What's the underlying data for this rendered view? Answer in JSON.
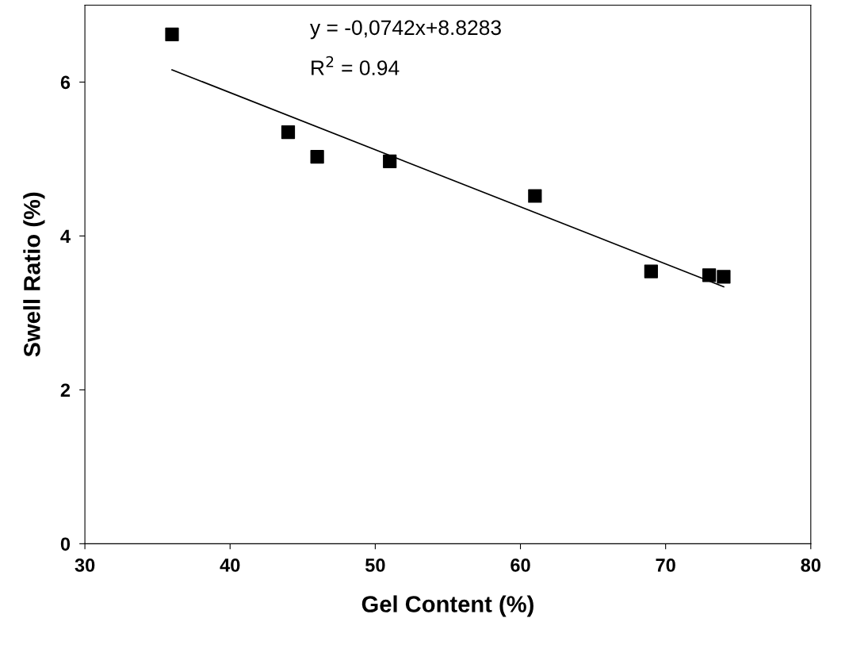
{
  "chart_data": {
    "type": "scatter",
    "xlabel": "Gel Content (%)",
    "ylabel": "Swell Ratio (%)",
    "xlim": [
      30,
      80
    ],
    "xticks": [
      30,
      40,
      50,
      60,
      70,
      80
    ],
    "ylim": [
      0,
      7
    ],
    "yticks": [
      0,
      2,
      4,
      6
    ],
    "grid": false,
    "legend": false,
    "marker": "square",
    "series": [
      {
        "color": "#000000",
        "x": [
          36,
          44,
          46,
          51,
          61,
          69,
          73,
          74
        ],
        "values": [
          6.62,
          5.35,
          5.03,
          4.97,
          4.52,
          3.54,
          3.49,
          3.47
        ]
      },
      {
        "type": "line",
        "color": "#000000",
        "marker": "none",
        "line_style": "solid",
        "x": [
          36,
          74
        ],
        "values": [
          6.16,
          3.34
        ]
      }
    ],
    "annotations": [
      "y = -0,0742x+8.8283",
      "R$^{2}$ = 0.94"
    ]
  }
}
